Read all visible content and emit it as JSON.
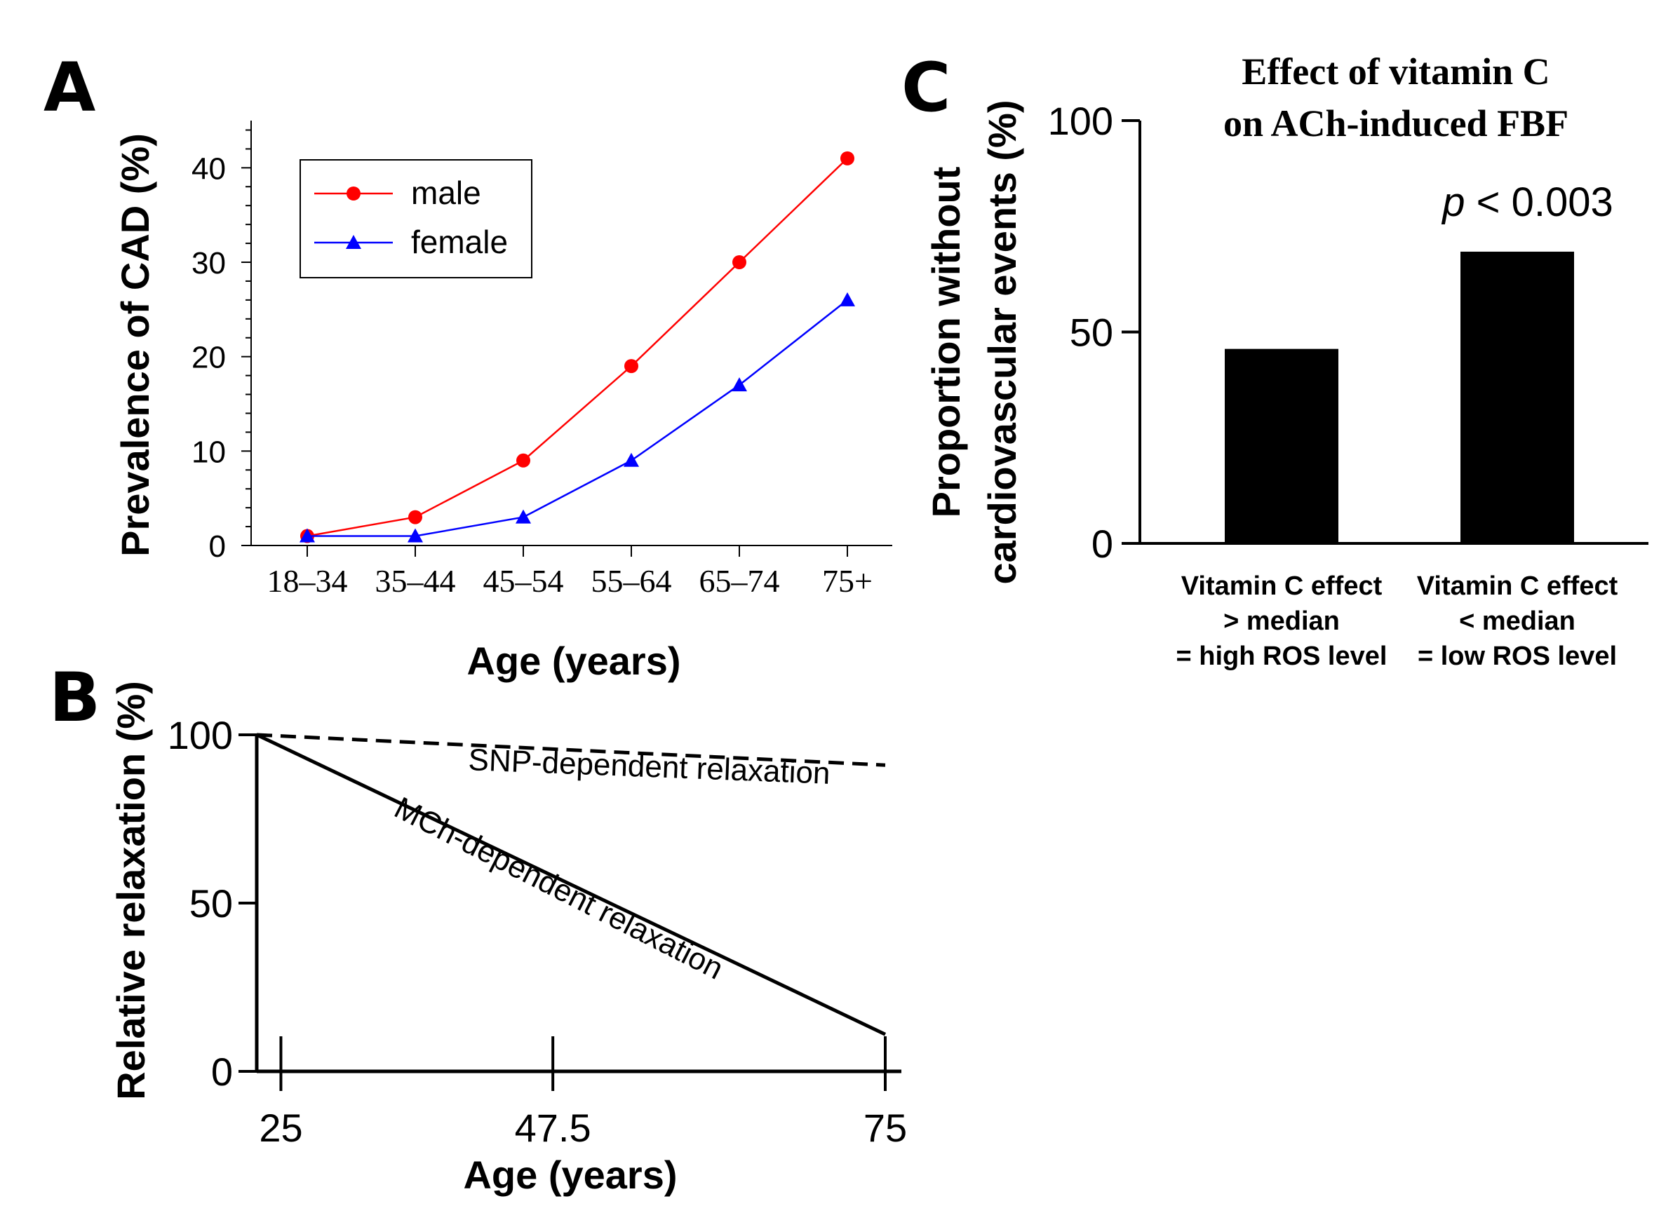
{
  "panels": {
    "a": {
      "letter": "A"
    },
    "b": {
      "letter": "B"
    },
    "c": {
      "letter": "C"
    }
  },
  "chart_data": [
    {
      "id": "A",
      "type": "line",
      "title": "",
      "xlabel": "Age (years)",
      "ylabel": "Prevalence of CAD (%)",
      "categories": [
        "18–34",
        "35–44",
        "45–54",
        "55–64",
        "65–74",
        "75+"
      ],
      "yticks": [
        0,
        10,
        20,
        30,
        40
      ],
      "ylim": [
        0,
        45
      ],
      "legend_position": "top-left",
      "series": [
        {
          "name": "male",
          "color": "#ff0000",
          "marker": "circle",
          "values": [
            1,
            3,
            9,
            19,
            30,
            41
          ]
        },
        {
          "name": "female",
          "color": "#0000ff",
          "marker": "triangle",
          "values": [
            1,
            1,
            3,
            9,
            17,
            26
          ]
        }
      ]
    },
    {
      "id": "B",
      "type": "line",
      "title": "",
      "xlabel": "Age (years)",
      "ylabel": "Relative relaxation (%)",
      "xticks": [
        25,
        47.5,
        75
      ],
      "xtick_labels": [
        "25",
        "47.5",
        "75"
      ],
      "yticks": [
        0,
        50,
        100
      ],
      "xlim": [
        23,
        75
      ],
      "ylim": [
        0,
        100
      ],
      "series": [
        {
          "name": "SNP-dependent relaxation",
          "style": "dashed",
          "color": "#000000",
          "x": [
            23,
            75
          ],
          "y": [
            100,
            91
          ]
        },
        {
          "name": "MCh-dependent relaxation",
          "style": "solid",
          "color": "#000000",
          "x": [
            23,
            75
          ],
          "y": [
            100,
            11
          ]
        }
      ]
    },
    {
      "id": "C",
      "type": "bar",
      "title": "Effect of vitamin C on ACh-induced FBF",
      "title_lines": [
        "Effect of vitamin C",
        "on ACh-induced FBF"
      ],
      "xlabel": "",
      "ylabel": "Proportion without cardiovascular events (%)",
      "ylabel_lines": [
        "Proportion without",
        "cardiovascular events (%)"
      ],
      "yticks": [
        0,
        50,
        100
      ],
      "ylim": [
        0,
        100
      ],
      "categories": [
        "Vitamin C effect > median = high ROS level",
        "Vitamin C effect < median = low ROS level"
      ],
      "category_lines": [
        [
          "Vitamin C effect",
          "> median",
          "= high ROS level"
        ],
        [
          "Vitamin C effect",
          "< median",
          "= low ROS level"
        ]
      ],
      "values": [
        46,
        69
      ],
      "annotation": {
        "p_symbol": "p",
        "p_text": " < 0.003"
      }
    }
  ]
}
